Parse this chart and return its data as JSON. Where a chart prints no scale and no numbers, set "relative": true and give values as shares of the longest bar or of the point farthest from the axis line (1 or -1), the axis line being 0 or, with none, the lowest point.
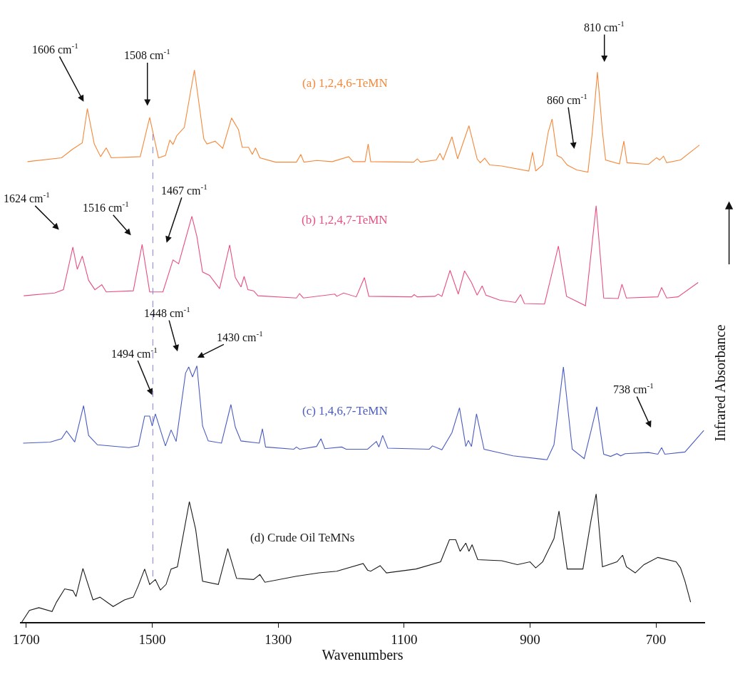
{
  "chart_data": {
    "type": "line",
    "relative": true,
    "xlabel": "Wavenumbers",
    "ylabel": "Infrared Absorbance",
    "xlim": [
      1710,
      622
    ],
    "xticks": [
      1700,
      1500,
      1300,
      1100,
      900,
      700
    ],
    "legend": false,
    "marker": "none",
    "line_style": "solid",
    "series": [
      {
        "name": "(a) 1,2,4,6-TeMN",
        "color": "#f5883a",
        "x": [
          1698,
          1644,
          1627,
          1611,
          1603,
          1592,
          1582,
          1573,
          1565,
          1519,
          1504,
          1490,
          1479,
          1472,
          1467,
          1461,
          1449,
          1433,
          1418,
          1413,
          1400,
          1388,
          1374,
          1363,
          1357,
          1347,
          1341,
          1336,
          1329,
          1304,
          1271,
          1264,
          1259,
          1239,
          1214,
          1188,
          1181,
          1162,
          1157,
          1153,
          1085,
          1079,
          1074,
          1049,
          1043,
          1038,
          1024,
          1015,
          997,
          984,
          979,
          972,
          964,
          945,
          902,
          896,
          891,
          880,
          871,
          865,
          857,
          850,
          841,
          826,
          808,
          801,
          793,
          785,
          780,
          758,
          751,
          746,
          712,
          699,
          694,
          688,
          683,
          661,
          631
        ],
        "values": [
          0.834,
          0.841,
          0.856,
          0.868,
          0.93,
          0.866,
          0.843,
          0.859,
          0.841,
          0.843,
          0.914,
          0.841,
          0.845,
          0.873,
          0.865,
          0.881,
          0.896,
          1.0,
          0.875,
          0.866,
          0.871,
          0.858,
          0.913,
          0.892,
          0.86,
          0.86,
          0.847,
          0.859,
          0.841,
          0.833,
          0.833,
          0.847,
          0.833,
          0.836,
          0.834,
          0.843,
          0.834,
          0.834,
          0.866,
          0.834,
          0.833,
          0.839,
          0.833,
          0.837,
          0.849,
          0.837,
          0.879,
          0.839,
          0.899,
          0.839,
          0.832,
          0.84,
          0.828,
          0.826,
          0.817,
          0.851,
          0.817,
          0.828,
          0.888,
          0.911,
          0.845,
          0.841,
          0.828,
          0.819,
          0.815,
          0.888,
          0.996,
          0.888,
          0.837,
          0.83,
          0.871,
          0.832,
          0.829,
          0.841,
          0.837,
          0.844,
          0.832,
          0.837,
          0.864
        ]
      },
      {
        "name": "(b) 1,2,4,7-TeMN",
        "color": "#e8507f",
        "x": [
          1704,
          1655,
          1641,
          1626,
          1619,
          1611,
          1601,
          1591,
          1580,
          1573,
          1530,
          1516,
          1504,
          1483,
          1467,
          1458,
          1437,
          1429,
          1420,
          1409,
          1393,
          1377,
          1368,
          1359,
          1354,
          1348,
          1339,
          1332,
          1271,
          1266,
          1260,
          1210,
          1207,
          1196,
          1176,
          1163,
          1156,
          1088,
          1084,
          1079,
          1051,
          1046,
          1040,
          1027,
          1014,
          1004,
          993,
          984,
          976,
          970,
          948,
          923,
          915,
          909,
          877,
          866,
          855,
          842,
          812,
          795,
          783,
          760,
          754,
          747,
          697,
          691,
          683,
          665,
          633
        ],
        "values": [
          0.591,
          0.596,
          0.602,
          0.679,
          0.639,
          0.663,
          0.619,
          0.602,
          0.611,
          0.598,
          0.6,
          0.684,
          0.598,
          0.598,
          0.656,
          0.649,
          0.735,
          0.698,
          0.634,
          0.628,
          0.604,
          0.683,
          0.624,
          0.607,
          0.626,
          0.602,
          0.6,
          0.591,
          0.587,
          0.595,
          0.587,
          0.594,
          0.59,
          0.596,
          0.589,
          0.624,
          0.59,
          0.589,
          0.593,
          0.589,
          0.59,
          0.594,
          0.59,
          0.637,
          0.594,
          0.636,
          0.615,
          0.592,
          0.609,
          0.592,
          0.583,
          0.579,
          0.593,
          0.577,
          0.576,
          0.628,
          0.681,
          0.59,
          0.573,
          0.754,
          0.587,
          0.586,
          0.612,
          0.587,
          0.589,
          0.606,
          0.587,
          0.589,
          0.615
        ]
      },
      {
        "name": "(c) 1,4,6,7-TeMN",
        "color": "#4a5cc2",
        "x": [
          1705,
          1662,
          1644,
          1636,
          1623,
          1609,
          1601,
          1587,
          1537,
          1522,
          1512,
          1504,
          1500,
          1495,
          1479,
          1470,
          1462,
          1447,
          1442,
          1436,
          1429,
          1420,
          1411,
          1390,
          1375,
          1368,
          1359,
          1330,
          1325,
          1320,
          1275,
          1271,
          1266,
          1239,
          1232,
          1226,
          1199,
          1192,
          1158,
          1144,
          1140,
          1134,
          1126,
          1060,
          1055,
          1040,
          1024,
          1012,
          1002,
          998,
          993,
          985,
          973,
          927,
          873,
          862,
          847,
          833,
          814,
          803,
          794,
          783,
          772,
          762,
          756,
          749,
          712,
          697,
          691,
          686,
          654,
          624
        ],
        "values": [
          0.324,
          0.326,
          0.332,
          0.346,
          0.326,
          0.392,
          0.338,
          0.321,
          0.316,
          0.319,
          0.373,
          0.373,
          0.355,
          0.377,
          0.319,
          0.348,
          0.327,
          0.451,
          0.462,
          0.444,
          0.464,
          0.355,
          0.328,
          0.324,
          0.394,
          0.353,
          0.328,
          0.324,
          0.35,
          0.317,
          0.313,
          0.317,
          0.313,
          0.318,
          0.332,
          0.314,
          0.317,
          0.313,
          0.313,
          0.327,
          0.317,
          0.338,
          0.315,
          0.313,
          0.319,
          0.312,
          0.343,
          0.388,
          0.318,
          0.329,
          0.318,
          0.377,
          0.313,
          0.301,
          0.294,
          0.321,
          0.462,
          0.313,
          0.296,
          0.347,
          0.39,
          0.304,
          0.3,
          0.305,
          0.301,
          0.305,
          0.307,
          0.304,
          0.316,
          0.304,
          0.308,
          0.347
        ]
      },
      {
        "name": "(d) Crude Oil TeMNs",
        "color": "#1a1a1a",
        "x": [
          1707,
          1695,
          1680,
          1659,
          1652,
          1639,
          1626,
          1621,
          1610,
          1594,
          1583,
          1562,
          1544,
          1530,
          1522,
          1512,
          1504,
          1495,
          1487,
          1478,
          1470,
          1460,
          1441,
          1431,
          1420,
          1395,
          1380,
          1366,
          1339,
          1329,
          1321,
          1271,
          1235,
          1207,
          1165,
          1158,
          1153,
          1138,
          1128,
          1081,
          1042,
          1028,
          1018,
          1011,
          1002,
          997,
          992,
          983,
          945,
          920,
          900,
          891,
          880,
          862,
          854,
          841,
          816,
          803,
          795,
          785,
          762,
          753,
          747,
          733,
          719,
          697,
          668,
          661,
          654,
          648,
          645
        ],
        "values": [
          0.0,
          0.021,
          0.026,
          0.019,
          0.036,
          0.06,
          0.057,
          0.046,
          0.097,
          0.04,
          0.045,
          0.028,
          0.04,
          0.045,
          0.066,
          0.096,
          0.068,
          0.077,
          0.058,
          0.068,
          0.096,
          0.1,
          0.218,
          0.168,
          0.074,
          0.068,
          0.133,
          0.079,
          0.077,
          0.086,
          0.072,
          0.083,
          0.089,
          0.092,
          0.106,
          0.094,
          0.092,
          0.102,
          0.089,
          0.096,
          0.109,
          0.149,
          0.149,
          0.128,
          0.143,
          0.128,
          0.14,
          0.113,
          0.111,
          0.104,
          0.109,
          0.098,
          0.109,
          0.151,
          0.201,
          0.096,
          0.096,
          0.185,
          0.232,
          0.1,
          0.109,
          0.121,
          0.1,
          0.089,
          0.104,
          0.117,
          0.109,
          0.098,
          0.074,
          0.049,
          0.036
        ]
      }
    ],
    "ref_lines": [
      {
        "axis": "x",
        "value": 1499,
        "color": "#8080d8",
        "line_style": "dashed"
      }
    ],
    "annotations": [
      "1606 cm$^{-1}$",
      "1508 cm$^{-1}$",
      "810 cm$^{-1}$",
      "860 cm$^{-1}$",
      "1624 cm$^{-1}$",
      "1516 cm$^{-1}$",
      "1467 cm$^{-1}$",
      "1448 cm$^{-1}$",
      "1430 cm$^{-1}$",
      "1494 cm$^{-1}$",
      "738 cm$^{-1}$"
    ]
  }
}
